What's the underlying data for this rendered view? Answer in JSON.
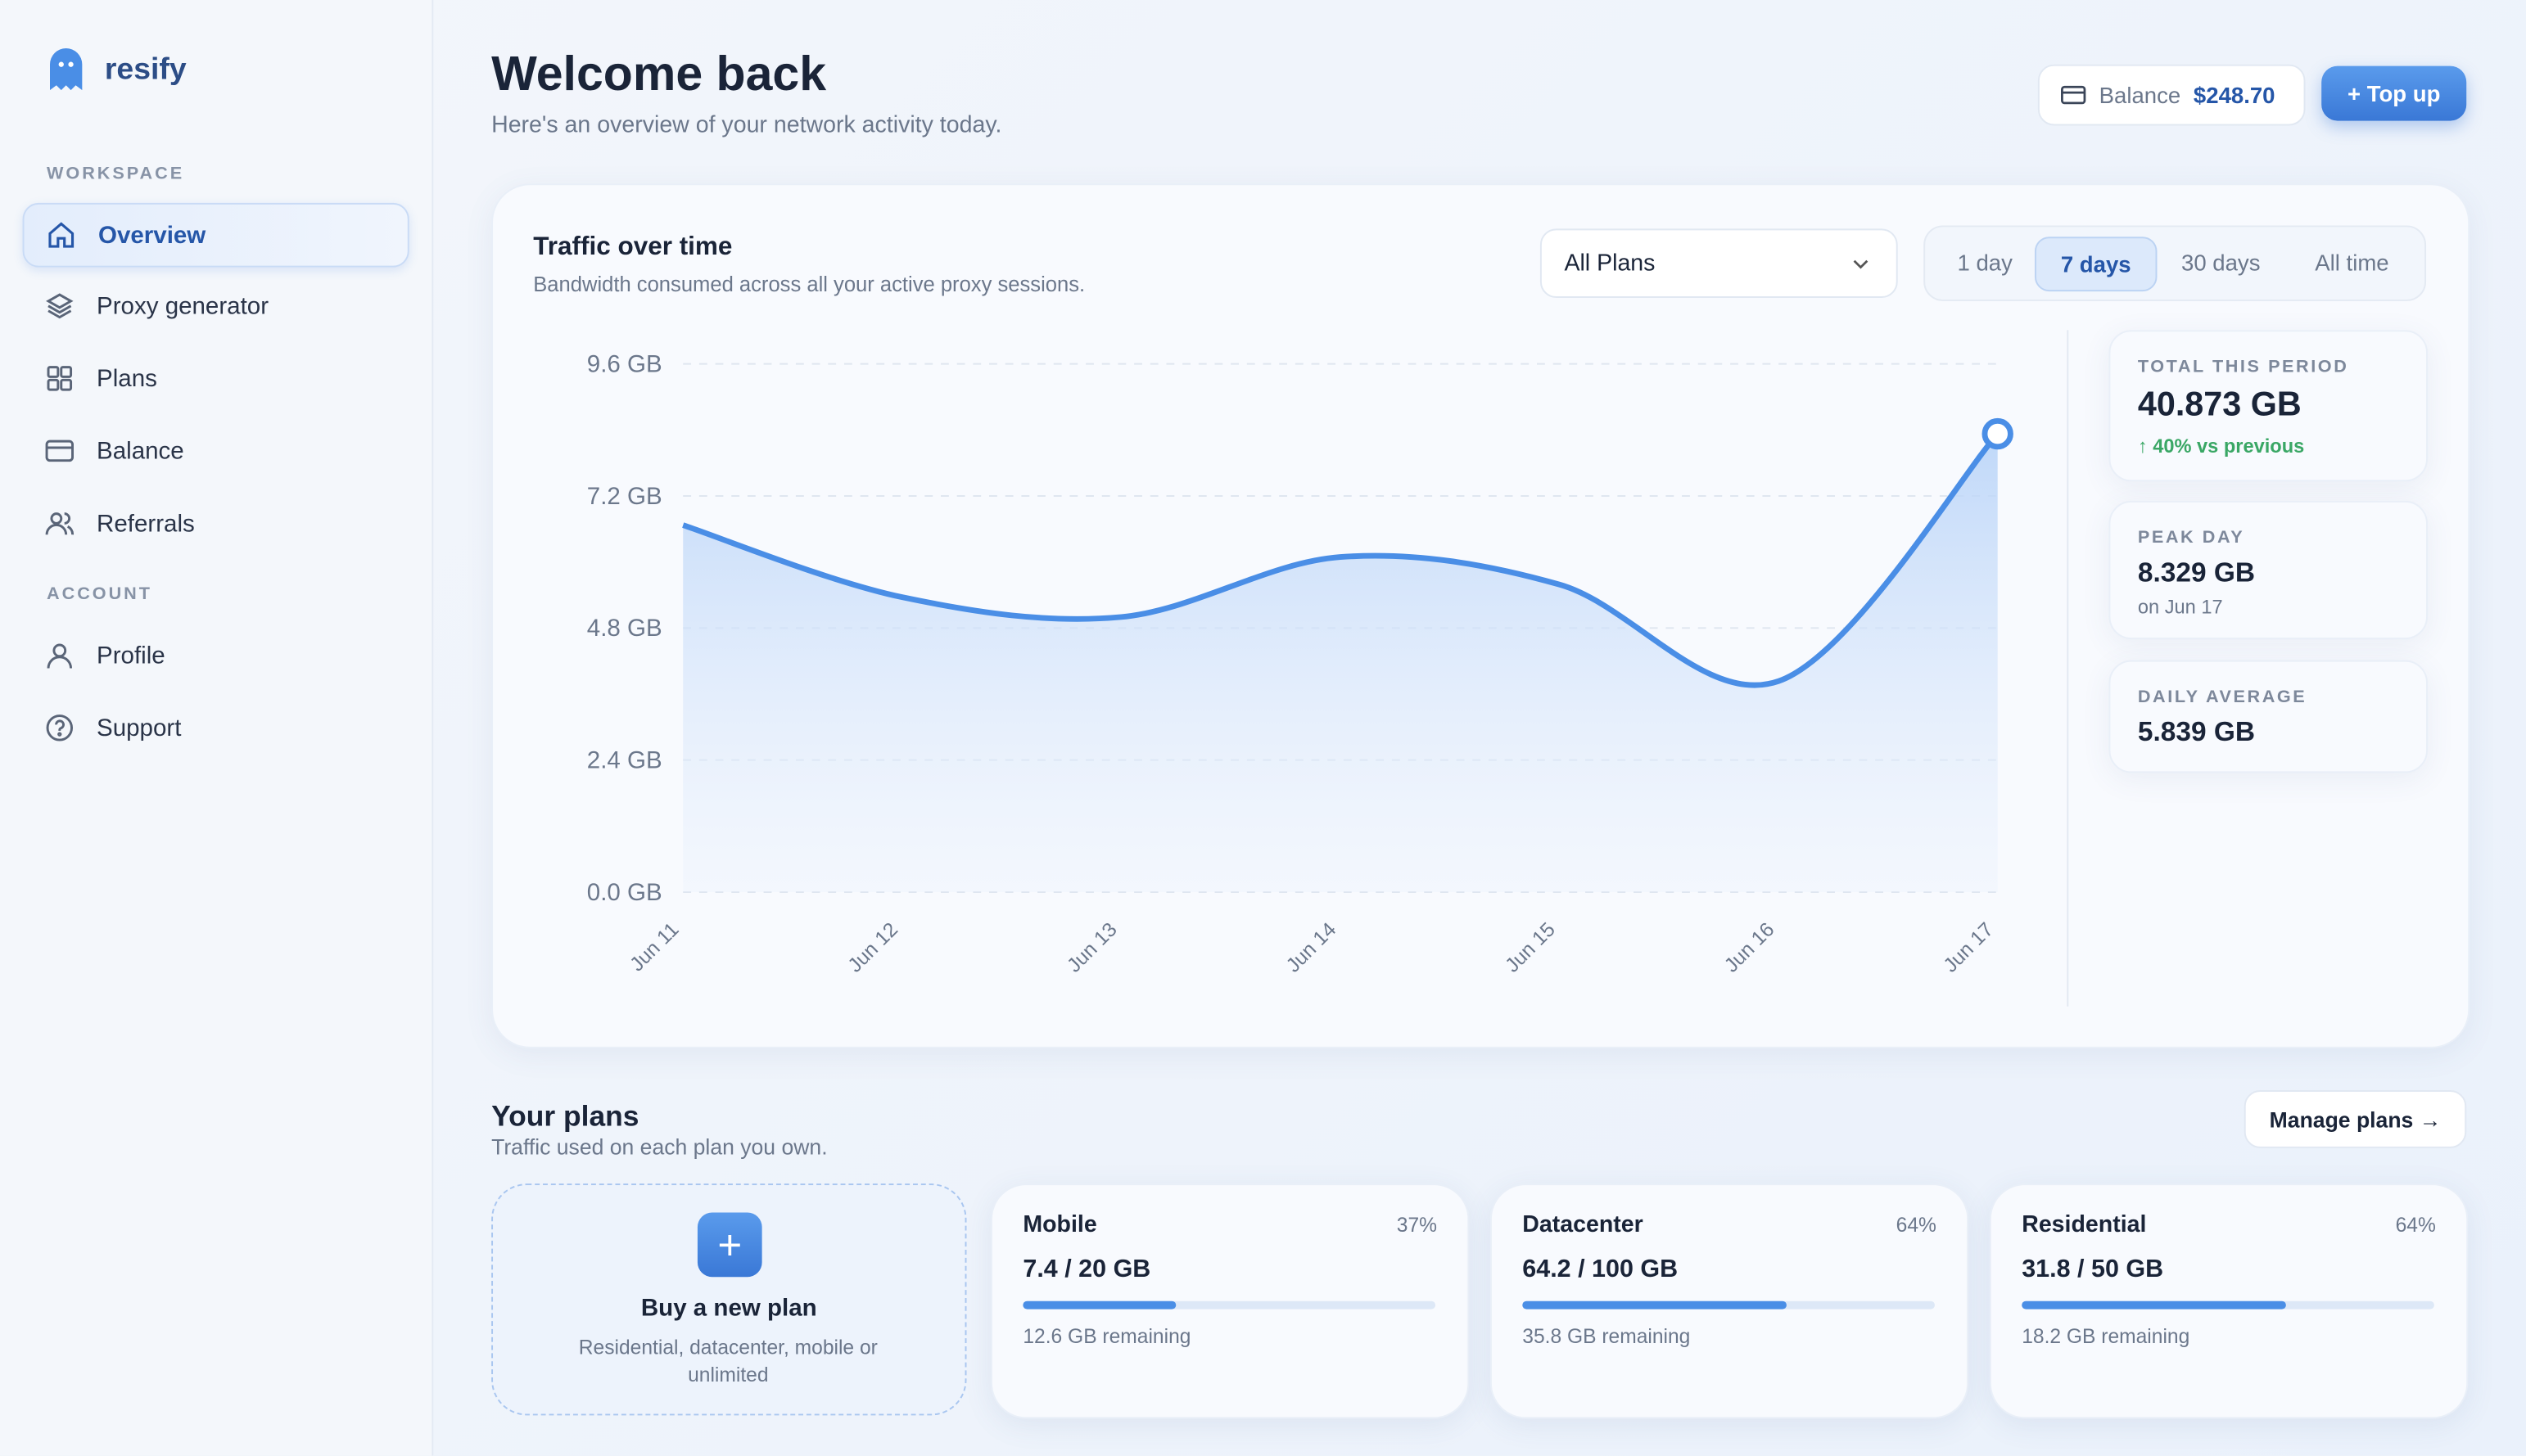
{
  "brand": "resify",
  "nav": {
    "sections": [
      {
        "title": "WORKSPACE",
        "items": [
          "Overview",
          "Proxy generator",
          "Plans",
          "Balance",
          "Referrals"
        ]
      },
      {
        "title": "ACCOUNT",
        "items": [
          "Profile",
          "Support"
        ]
      }
    ]
  },
  "header": {
    "title": "Welcome back",
    "subtitle": "Here's an overview of your network activity today.",
    "balance_label": "Balance",
    "balance": "$248.70",
    "topup": "+ Top up"
  },
  "chart_data": {
    "type": "line",
    "title": "Traffic over time",
    "subtitle": "Bandwidth consumed across all your active proxy sessions.",
    "categories": [
      "Jun 11",
      "Jun 12",
      "Jun 13",
      "Jun 14",
      "Jun 15",
      "Jun 16",
      "Jun 17"
    ],
    "values": [
      6.67,
      5.36,
      5.0,
      6.09,
      5.59,
      3.834,
      8.329
    ],
    "color": "#4a8ee6",
    "ylim": [
      0,
      9.6
    ],
    "yticks": [
      {
        "value": 0,
        "label": "0.0 GB"
      },
      {
        "value": 2.4,
        "label": "2.4 GB"
      },
      {
        "value": 4.8,
        "label": "4.8 GB"
      },
      {
        "value": 7.2,
        "label": "7.2 GB"
      },
      {
        "value": 9.6,
        "label": "9.6 GB"
      }
    ],
    "grid": true
  },
  "filters": {
    "plan": "All Plans",
    "ranges": [
      "1 day",
      "7 days",
      "30 days",
      "All time"
    ]
  },
  "stats": [
    {
      "label": "TOTAL THIS PERIOD",
      "value": "40.873 GB",
      "note": "↑ 40% vs previous"
    },
    {
      "label": "PEAK DAY",
      "value": "8.329 GB",
      "note": "on Jun 17"
    },
    {
      "label": "DAILY AVERAGE",
      "value": "5.839 GB"
    }
  ],
  "plans": {
    "title": "Your plans",
    "subtitle": "Traffic used on each plan you own.",
    "manage": "Manage plans →",
    "buy": {
      "title": "Buy a new plan",
      "text": "Residential, datacenter, mobile or unlimited"
    },
    "items": [
      {
        "name": "Mobile",
        "percent": 37,
        "percent_label": "37%",
        "usage": "7.4 / 20 GB",
        "remaining": "12.6 GB remaining"
      },
      {
        "name": "Datacenter",
        "percent": 64,
        "percent_label": "64%",
        "usage": "64.2 / 100 GB",
        "remaining": "35.8 GB remaining"
      },
      {
        "name": "Residential",
        "percent": 64,
        "percent_label": "64%",
        "usage": "31.8 / 50 GB",
        "remaining": "18.2 GB remaining"
      }
    ]
  }
}
